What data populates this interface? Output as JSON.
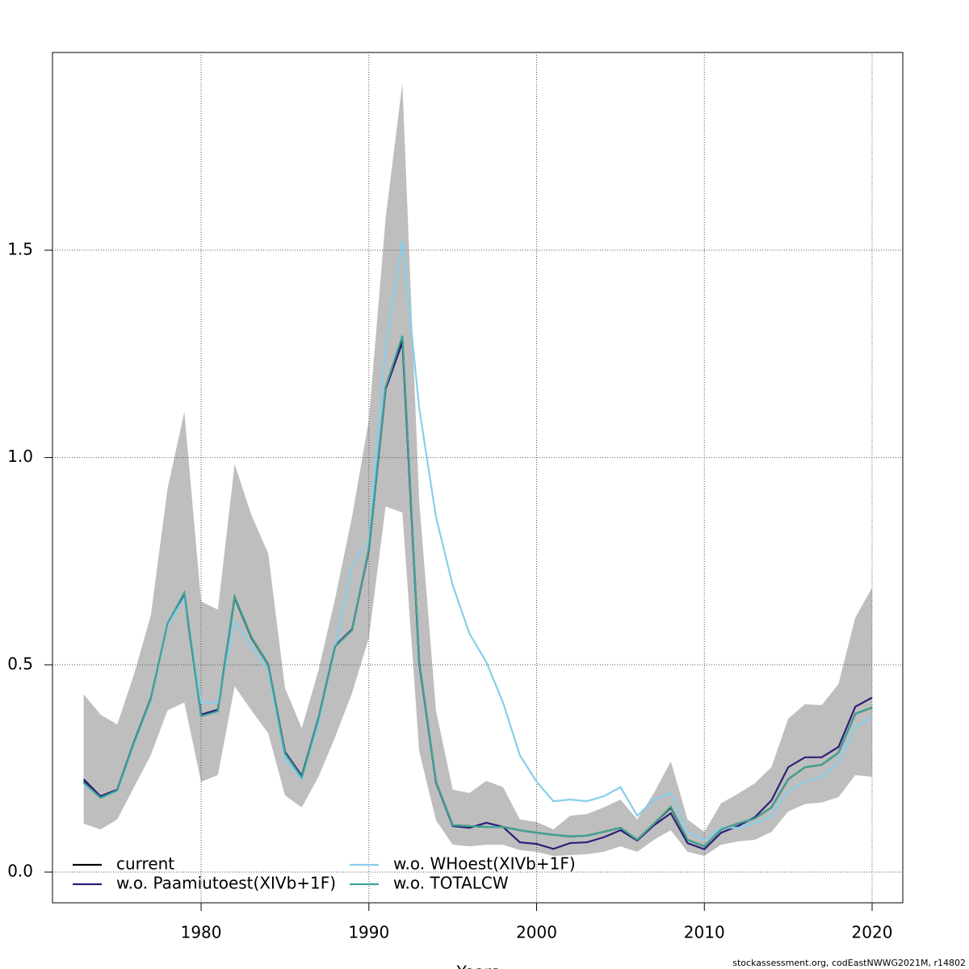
{
  "chart_data": {
    "type": "line",
    "x": [
      1973,
      1974,
      1975,
      1976,
      1977,
      1978,
      1979,
      1980,
      1981,
      1982,
      1983,
      1984,
      1985,
      1986,
      1987,
      1988,
      1989,
      1990,
      1991,
      1992,
      1993,
      1994,
      1995,
      1996,
      1997,
      1998,
      1999,
      2000,
      2001,
      2002,
      2003,
      2004,
      2005,
      2006,
      2007,
      2008,
      2009,
      2010,
      2011,
      2012,
      2013,
      2014,
      2015,
      2016,
      2017,
      2018,
      2019,
      2020
    ],
    "band": {
      "color": "#bebebe",
      "upper": [
        0.429,
        0.38,
        0.356,
        0.477,
        0.619,
        0.925,
        1.11,
        0.653,
        0.633,
        0.984,
        0.861,
        0.769,
        0.444,
        0.347,
        0.487,
        0.662,
        0.857,
        1.091,
        1.578,
        1.903,
        0.896,
        0.39,
        0.199,
        0.191,
        0.22,
        0.205,
        0.127,
        0.121,
        0.103,
        0.136,
        0.14,
        0.156,
        0.175,
        0.127,
        0.191,
        0.267,
        0.127,
        0.097,
        0.166,
        0.189,
        0.214,
        0.253,
        0.37,
        0.405,
        0.403,
        0.454,
        0.614,
        0.686
      ],
      "lower": [
        0.117,
        0.103,
        0.127,
        0.205,
        0.282,
        0.39,
        0.409,
        0.218,
        0.234,
        0.448,
        0.39,
        0.335,
        0.185,
        0.156,
        0.23,
        0.327,
        0.432,
        0.565,
        0.882,
        0.867,
        0.292,
        0.125,
        0.066,
        0.062,
        0.066,
        0.066,
        0.053,
        0.049,
        0.039,
        0.041,
        0.043,
        0.049,
        0.062,
        0.049,
        0.078,
        0.101,
        0.049,
        0.039,
        0.066,
        0.074,
        0.078,
        0.097,
        0.146,
        0.164,
        0.168,
        0.181,
        0.234,
        0.23
      ]
    },
    "series": [
      {
        "name": "current",
        "color": "#000000",
        "values": [
          0.218,
          0.181,
          0.197,
          0.312,
          0.417,
          0.598,
          0.672,
          0.378,
          0.39,
          0.662,
          0.565,
          0.499,
          0.288,
          0.23,
          0.37,
          0.545,
          0.584,
          0.779,
          1.169,
          1.29,
          0.507,
          0.218,
          0.113,
          0.111,
          0.109,
          0.109,
          0.101,
          0.095,
          0.09,
          0.086,
          0.088,
          0.097,
          0.107,
          0.078,
          0.117,
          0.156,
          0.078,
          0.062,
          0.103,
          0.117,
          0.129,
          0.156,
          0.224,
          0.253,
          0.259,
          0.288,
          0.382,
          0.397
        ]
      },
      {
        "name": "w.o. Paamiutoest(XIVb+1F)",
        "color": "#2e1e78",
        "values": [
          0.224,
          0.183,
          0.199,
          0.314,
          0.419,
          0.598,
          0.666,
          0.38,
          0.392,
          0.664,
          0.567,
          0.501,
          0.29,
          0.232,
          0.372,
          0.547,
          0.586,
          0.777,
          1.165,
          1.278,
          0.505,
          0.216,
          0.111,
          0.107,
          0.119,
          0.109,
          0.072,
          0.068,
          0.056,
          0.07,
          0.072,
          0.084,
          0.101,
          0.076,
          0.113,
          0.142,
          0.07,
          0.055,
          0.095,
          0.111,
          0.132,
          0.173,
          0.253,
          0.277,
          0.277,
          0.302,
          0.399,
          0.421
        ]
      },
      {
        "name": "w.o. WHoest(XIVb+1F)",
        "color": "#87ceeb",
        "values": [
          0.214,
          0.179,
          0.195,
          0.308,
          0.415,
          0.594,
          0.662,
          0.409,
          0.409,
          0.604,
          0.545,
          0.487,
          0.273,
          0.224,
          0.36,
          0.545,
          0.74,
          0.799,
          1.266,
          1.523,
          1.12,
          0.857,
          0.692,
          0.575,
          0.507,
          0.409,
          0.282,
          0.218,
          0.171,
          0.175,
          0.171,
          0.183,
          0.205,
          0.136,
          0.175,
          0.191,
          0.097,
          0.078,
          0.107,
          0.107,
          0.117,
          0.136,
          0.195,
          0.218,
          0.23,
          0.263,
          0.351,
          0.374
        ]
      },
      {
        "name": "w.o. TOTALCW",
        "color": "#3fa595",
        "values": [
          0.216,
          0.179,
          0.197,
          0.312,
          0.417,
          0.6,
          0.674,
          0.376,
          0.388,
          0.664,
          0.567,
          0.499,
          0.286,
          0.228,
          0.37,
          0.545,
          0.584,
          0.781,
          1.171,
          1.294,
          0.509,
          0.218,
          0.113,
          0.111,
          0.109,
          0.109,
          0.101,
          0.095,
          0.09,
          0.086,
          0.088,
          0.097,
          0.107,
          0.078,
          0.117,
          0.158,
          0.078,
          0.062,
          0.103,
          0.117,
          0.129,
          0.156,
          0.224,
          0.253,
          0.259,
          0.288,
          0.382,
          0.397
        ]
      }
    ],
    "xlabel": "Years",
    "xlim": [
      1971.14,
      2021.83
    ],
    "ylim": [
      -0.074,
      1.977
    ],
    "xticks": [
      1980,
      1990,
      2000,
      2010,
      2020
    ],
    "yticks": [
      {
        "value": 0,
        "label": "0.0"
      },
      0.5,
      {
        "value": 1,
        "label": "1.0"
      },
      1.5
    ],
    "grid": true,
    "legend": "bottomleft",
    "caption": "stockassessment.org, codEastNWWG2021M, r14802"
  }
}
